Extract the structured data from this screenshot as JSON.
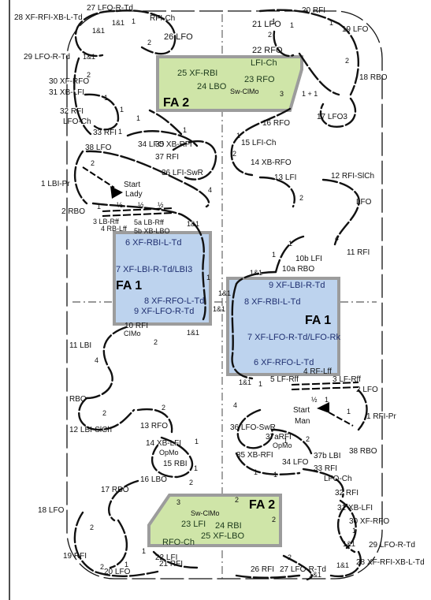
{
  "title_labels": {
    "tl_27": "27 LFO-R-Td",
    "tl_28": "28 XF-RFI-XB-L-Td",
    "tl_rfich": "RFI-Ch",
    "tl_26": "26 LFO",
    "tl_29": "29 LFO-R-Td",
    "tl_30": "30 XF-RFO",
    "tl_31": "31 XB-LFI",
    "tl_32": "32 RFI",
    "tl_lfoch": "LFO-Ch",
    "tl_33": "33 RFI",
    "tl_34": "34 LFO",
    "tl_35": "35 XB-RFI",
    "tl_37": "37 RFI",
    "tl_38": "38 LFO",
    "tl_36": "36 LFI-SwR",
    "tl_1": "1 LBI-Pr",
    "tl_start": "Start",
    "tl_lady": "Lady",
    "tl_2": "2 RBO",
    "tl_3": "3 LB-Rff",
    "tl_4": "4 RB-Lff",
    "tl_5a": "5a LB-Rff",
    "tl_5b": "5b XB-LBO",
    "tl_10": "10 RFI",
    "tl_cimo": "CIMo",
    "tl_11": "11 LBI",
    "tl_rbo": "RBO",
    "tl_12": "12 LBI-SlCh",
    "tl_13": "13 RFO",
    "tl_14": "14 XB-LFI",
    "tl_opmo": "OpMo",
    "tl_15": "15 RBI",
    "tl_16": "16 LBO",
    "tl_17": "17 RBO",
    "tl_18": "18 LFO",
    "tl_19": "19 RFI",
    "tl_20": "20 LFO",
    "tl_21": "21 RFI",
    "tl_22": "22 LFI"
  },
  "right_labels": {
    "r_20": "20 RFI",
    "r_21": "21 LFO",
    "r_19": "19 LFO",
    "r_22": "22 RFO",
    "r_18": "18 RBO",
    "r_1p1": "1 + 1",
    "r_17": "17 LFO3",
    "r_16": "16 RFO",
    "r_15": "15 LFI-Ch",
    "r_14": "14 XB-RFO",
    "r_13": "13 LFI",
    "r_12": "12 RFI-SlCh",
    "r_lfo": "LFO",
    "r_11": "11 RFI",
    "r_10b": "10b LFI",
    "r_10a": "10a RBO",
    "r_5": "5 LF-Rff",
    "r_4": "4 RF-Lff",
    "r_3": "3 LF-Rff",
    "r_2": "2 LFO",
    "r_1": "1 RFI-Pr",
    "r_start": "Start",
    "r_man": "Man",
    "r_36": "36 LFO-SwR",
    "r_37a": "37aRFI",
    "r_opmo": "OpMo",
    "r_35": "35 XB-RFI",
    "r_34": "34 LFO",
    "r_37b": "37b LBI",
    "r_38": "38 RBO",
    "r_33": "33 RFI",
    "r_lfoch": "LFO-Ch",
    "r_32": "32 RFI",
    "r_31": "31 XB-LFI",
    "r_30": "30 XF-RFO",
    "r_29": "29 LFO-R-Td",
    "r_28": "28 XF-RFI-XB-L-Td",
    "r_27": "27 LFO-R-Td",
    "r_26": "26 RFI"
  },
  "fa2_top": {
    "title": "FA 2",
    "l25": "25 XF-RBI",
    "l24": "24 LBO",
    "l23": "23 RFO",
    "lfi_ch": "LFI-Ch",
    "swclmo": "Sw-ClMo"
  },
  "fa1_left": {
    "title": "FA 1",
    "l6": "6 XF-RBI-L-Td",
    "l7": "7 XF-LBI-R-Td/LBI3",
    "l8": "8 XF-RFO-L-Td",
    "l9": "9 XF-LFO-R-Td"
  },
  "fa1_right": {
    "title": "FA 1",
    "l9": "9 XF-LBI-R-Td",
    "l8": "8 XF-RBI-L-Td",
    "l7": "7 XF-LFO-R-Td/LFO-Rk",
    "l6": "6 XF-RFO-L-Td"
  },
  "fa2_bottom": {
    "title": "FA 2",
    "l23": "23 LFI",
    "l24": "24 RBI",
    "l25": "25 XF-LBO",
    "swclmo": "Sw-ClMo",
    "rfoch": "RFO-Ch"
  },
  "counts": {
    "one": "1",
    "two": "2",
    "three": "3",
    "four": "4",
    "oneone": "1&1",
    "half": "½"
  },
  "colors": {
    "fa1_fill": "#bdd3ee",
    "fa2_fill": "#cfe5a8",
    "box_border": "#9c9c9c"
  }
}
